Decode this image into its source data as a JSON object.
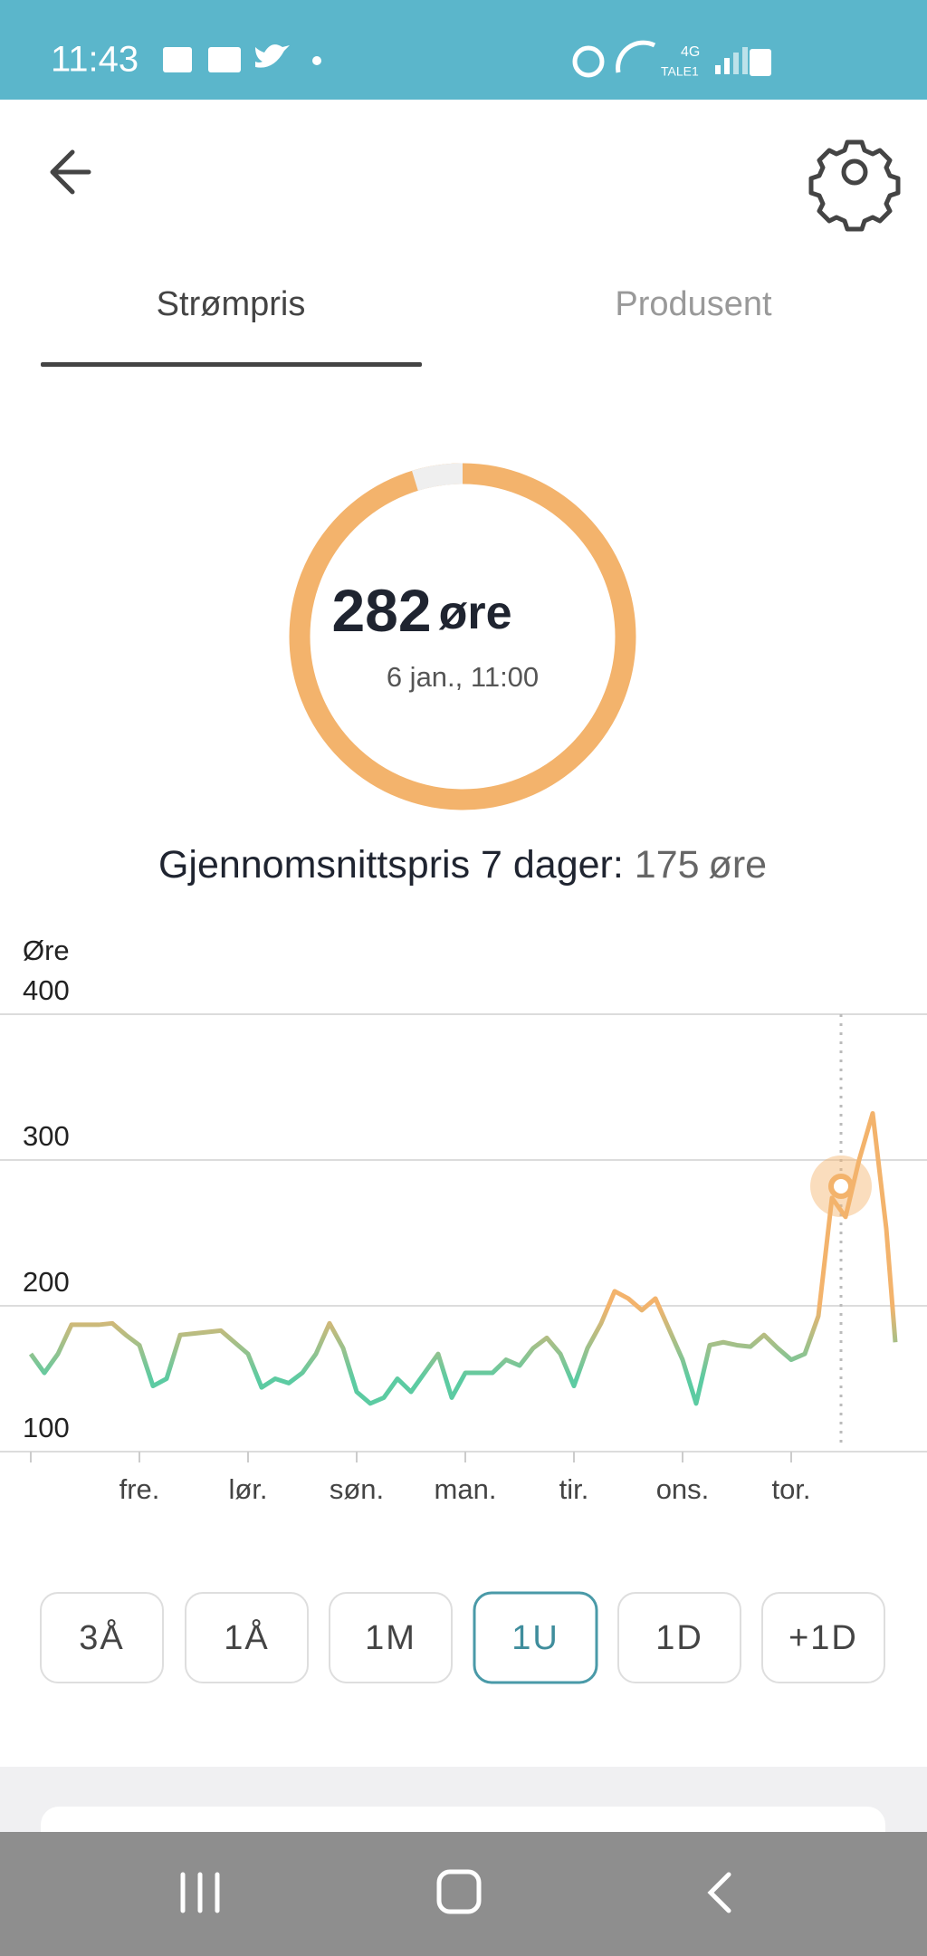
{
  "status_bar": {
    "time": "11:43",
    "network": "4G",
    "carrier": "TALE1"
  },
  "tabs": [
    "Strømpris",
    "Produsent"
  ],
  "gauge": {
    "value": 282,
    "unit": "øre",
    "date": "6 jan., 11:00"
  },
  "average": {
    "label": "Gjennomsnittspris 7 dager:",
    "value": 175,
    "unit": "øre"
  },
  "ranges": [
    "3Å",
    "1Å",
    "1M",
    "1U",
    "1D",
    "+1D"
  ],
  "active_range": "1U",
  "chart_data": {
    "type": "line",
    "y_label": "Øre",
    "x": [
      0,
      3,
      6,
      9,
      12,
      15,
      18,
      21,
      24,
      27,
      30,
      33,
      36,
      39,
      42,
      45,
      48,
      51,
      54,
      57,
      60,
      63,
      66,
      69,
      72,
      75,
      78,
      81,
      84,
      87,
      90,
      93,
      96,
      99,
      102,
      105,
      108,
      111,
      114,
      117,
      120,
      123,
      126,
      129,
      132,
      135,
      138,
      141,
      144,
      147,
      150,
      153,
      156,
      159,
      162,
      165,
      168,
      171,
      174,
      177,
      180,
      183,
      186,
      189,
      191
    ],
    "values": [
      167,
      154,
      167,
      187,
      187,
      187,
      188,
      180,
      173,
      145,
      150,
      180,
      181,
      182,
      183,
      175,
      167,
      144,
      150,
      147,
      154,
      167,
      188,
      171,
      141,
      133,
      137,
      150,
      141,
      154,
      167,
      137,
      154,
      154,
      154,
      163,
      159,
      171,
      178,
      167,
      145,
      171,
      188,
      210,
      205,
      197,
      205,
      184,
      163,
      133,
      173,
      175,
      173,
      172,
      180,
      171,
      163,
      167,
      193,
      274,
      261,
      300,
      332,
      253,
      175
    ],
    "xlim": [
      0,
      198
    ],
    "xticks": [
      {
        "value": 24,
        "label": "fre."
      },
      {
        "value": 48,
        "label": "lør."
      },
      {
        "value": 72,
        "label": "søn."
      },
      {
        "value": 96,
        "label": "man."
      },
      {
        "value": 120,
        "label": "tir."
      },
      {
        "value": 144,
        "label": "ons."
      },
      {
        "value": 168,
        "label": "tor."
      }
    ],
    "ylim": [
      100,
      400
    ],
    "yticks": [
      100,
      200,
      300,
      400
    ],
    "grid": true,
    "selected_x": 179,
    "colors": {
      "low": "#5ccba2",
      "high": "#f3b36c"
    }
  }
}
